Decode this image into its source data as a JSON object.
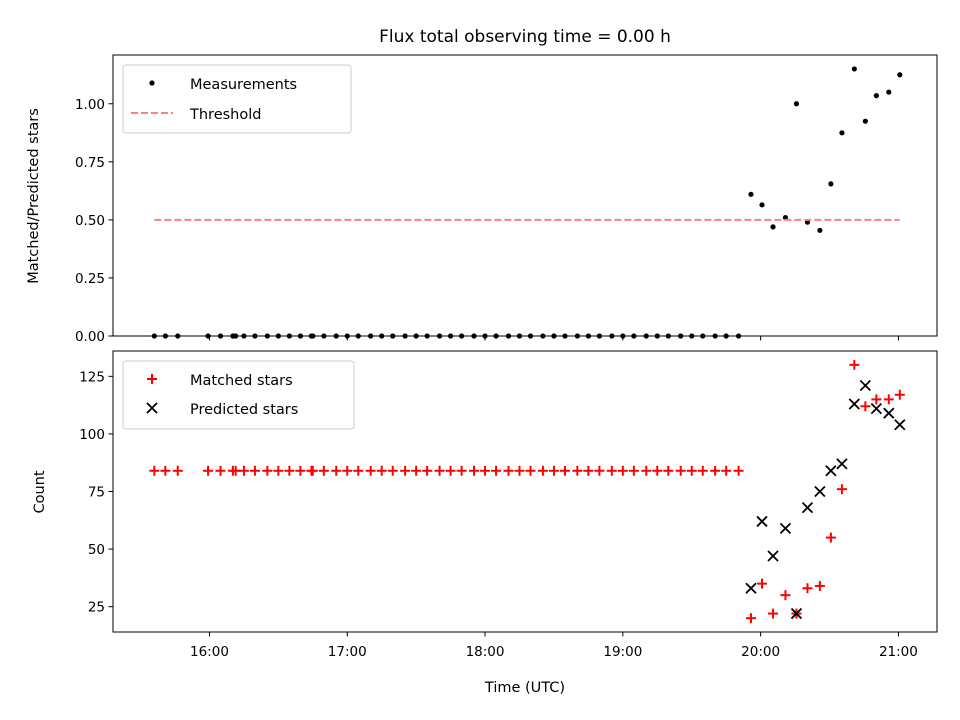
{
  "chart_data": {
    "title": "Flux total observing time = 0.00 h",
    "xlabel": "Time (UTC)",
    "x_ticks": [
      "16:00",
      "17:00",
      "18:00",
      "19:00",
      "20:00",
      "21:00"
    ],
    "x_tick_hours": [
      16,
      17,
      18,
      19,
      20,
      21
    ],
    "xlim": [
      15.3,
      21.28
    ],
    "panels": [
      {
        "type": "scatter",
        "ylabel": "Matched/Predicted stars",
        "ylim": [
          0,
          1.21
        ],
        "y_ticks": [
          0.0,
          0.25,
          0.5,
          0.75,
          1.0
        ],
        "y_tick_labels": [
          "0.00",
          "0.25",
          "0.50",
          "0.75",
          "1.00"
        ],
        "legend_position": "top-left",
        "series": [
          {
            "name": "Measurements",
            "marker": "dot",
            "color": "#000000",
            "x": [
              15.6,
              15.68,
              15.77,
              15.99,
              16.08,
              16.17,
              16.19,
              16.25,
              16.33,
              16.42,
              16.5,
              16.58,
              16.66,
              16.74,
              16.75,
              16.83,
              16.92,
              17.0,
              17.08,
              17.17,
              17.25,
              17.33,
              17.42,
              17.5,
              17.58,
              17.67,
              17.75,
              17.83,
              17.92,
              18.0,
              18.08,
              18.17,
              18.25,
              18.33,
              18.42,
              18.5,
              18.58,
              18.67,
              18.75,
              18.83,
              18.92,
              19.0,
              19.08,
              19.17,
              19.25,
              19.33,
              19.42,
              19.5,
              19.58,
              19.67,
              19.75,
              19.84,
              19.93,
              20.01,
              20.09,
              20.18,
              20.26,
              20.34,
              20.43,
              20.51,
              20.59,
              20.68,
              20.76,
              20.84,
              20.93,
              21.01
            ],
            "y": [
              0,
              0,
              0,
              0,
              0,
              0,
              0,
              0,
              0,
              0,
              0,
              0,
              0,
              0,
              0,
              0,
              0,
              0,
              0,
              0,
              0,
              0,
              0,
              0,
              0,
              0,
              0,
              0,
              0,
              0,
              0,
              0,
              0,
              0,
              0,
              0,
              0,
              0,
              0,
              0,
              0,
              0,
              0,
              0,
              0,
              0,
              0,
              0,
              0,
              0,
              0,
              0,
              0.61,
              0.565,
              0.47,
              0.51,
              1.0,
              0.49,
              0.455,
              0.655,
              0.875,
              1.15,
              0.925,
              1.035,
              1.05,
              1.125
            ]
          },
          {
            "name": "Threshold",
            "type": "line",
            "style": "dashed",
            "color": "#ff8080",
            "x": [
              15.6,
              21.01
            ],
            "y": [
              0.5,
              0.5
            ]
          }
        ]
      },
      {
        "type": "scatter",
        "ylabel": "Count",
        "ylim": [
          14,
          136
        ],
        "y_ticks": [
          25,
          50,
          75,
          100,
          125
        ],
        "y_tick_labels": [
          "25",
          "50",
          "75",
          "100",
          "125"
        ],
        "legend_position": "top-left",
        "series": [
          {
            "name": "Matched stars",
            "marker": "plus",
            "color": "#ff0000",
            "x": [
              15.6,
              15.68,
              15.77,
              15.99,
              16.08,
              16.17,
              16.19,
              16.25,
              16.33,
              16.42,
              16.5,
              16.58,
              16.66,
              16.74,
              16.75,
              16.83,
              16.92,
              17.0,
              17.08,
              17.17,
              17.25,
              17.33,
              17.42,
              17.5,
              17.58,
              17.67,
              17.75,
              17.83,
              17.92,
              18.0,
              18.08,
              18.17,
              18.25,
              18.33,
              18.42,
              18.5,
              18.58,
              18.67,
              18.75,
              18.83,
              18.92,
              19.0,
              19.08,
              19.17,
              19.25,
              19.33,
              19.42,
              19.5,
              19.58,
              19.67,
              19.75,
              19.84,
              19.93,
              20.01,
              20.09,
              20.18,
              20.26,
              20.34,
              20.43,
              20.51,
              20.59,
              20.68,
              20.76,
              20.84,
              20.93,
              21.01
            ],
            "y": [
              84,
              84,
              84,
              84,
              84,
              84,
              84,
              84,
              84,
              84,
              84,
              84,
              84,
              84,
              84,
              84,
              84,
              84,
              84,
              84,
              84,
              84,
              84,
              84,
              84,
              84,
              84,
              84,
              84,
              84,
              84,
              84,
              84,
              84,
              84,
              84,
              84,
              84,
              84,
              84,
              84,
              84,
              84,
              84,
              84,
              84,
              84,
              84,
              84,
              84,
              84,
              84,
              20,
              35,
              22,
              30,
              22,
              33,
              34,
              55,
              76,
              130,
              112,
              115,
              115,
              117
            ]
          },
          {
            "name": "Predicted stars",
            "marker": "x",
            "color": "#000000",
            "x": [
              19.93,
              20.01,
              20.09,
              20.18,
              20.26,
              20.34,
              20.43,
              20.51,
              20.59,
              20.68,
              20.76,
              20.84,
              20.93,
              21.01
            ],
            "y": [
              33,
              62,
              47,
              59,
              22,
              68,
              75,
              84,
              87,
              113,
              121,
              111,
              109,
              104
            ]
          }
        ]
      }
    ]
  }
}
